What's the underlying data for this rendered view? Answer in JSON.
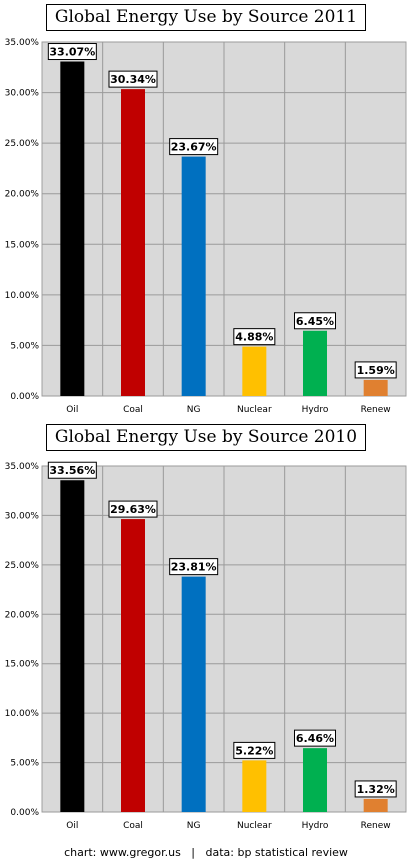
{
  "chart_data": [
    {
      "type": "bar",
      "title": "Global Energy Use by Source 2011",
      "categories": [
        "Oil",
        "Coal",
        "NG",
        "Nuclear",
        "Hydro",
        "Renew"
      ],
      "values": [
        33.07,
        30.34,
        23.67,
        4.88,
        6.45,
        1.59
      ],
      "value_labels": [
        "33.07%",
        "30.34%",
        "23.67%",
        "4.88%",
        "6.45%",
        "1.59%"
      ],
      "colors": [
        "#000000",
        "#c00000",
        "#0070c0",
        "#ffc000",
        "#00b050",
        "#e08030"
      ],
      "ylim": [
        0,
        35
      ],
      "yticks": [
        "0.00%",
        "5.00%",
        "10.00%",
        "15.00%",
        "20.00%",
        "25.00%",
        "30.00%",
        "35.00%"
      ],
      "grid": true,
      "xlabel": "",
      "ylabel": ""
    },
    {
      "type": "bar",
      "title": "Global Energy Use by Source 2010",
      "categories": [
        "Oil",
        "Coal",
        "NG",
        "Nuclear",
        "Hydro",
        "Renew"
      ],
      "values": [
        33.56,
        29.63,
        23.81,
        5.22,
        6.46,
        1.32
      ],
      "value_labels": [
        "33.56%",
        "29.63%",
        "23.81%",
        "5.22%",
        "6.46%",
        "1.32%"
      ],
      "colors": [
        "#000000",
        "#c00000",
        "#0070c0",
        "#ffc000",
        "#00b050",
        "#e08030"
      ],
      "ylim": [
        0,
        35
      ],
      "yticks": [
        "0.00%",
        "5.00%",
        "10.00%",
        "15.00%",
        "20.00%",
        "25.00%",
        "30.00%",
        "35.00%"
      ],
      "grid": true,
      "xlabel": "",
      "ylabel": ""
    }
  ],
  "footer": {
    "text": "chart: www.gregor.us   |   data: bp statistical review"
  }
}
